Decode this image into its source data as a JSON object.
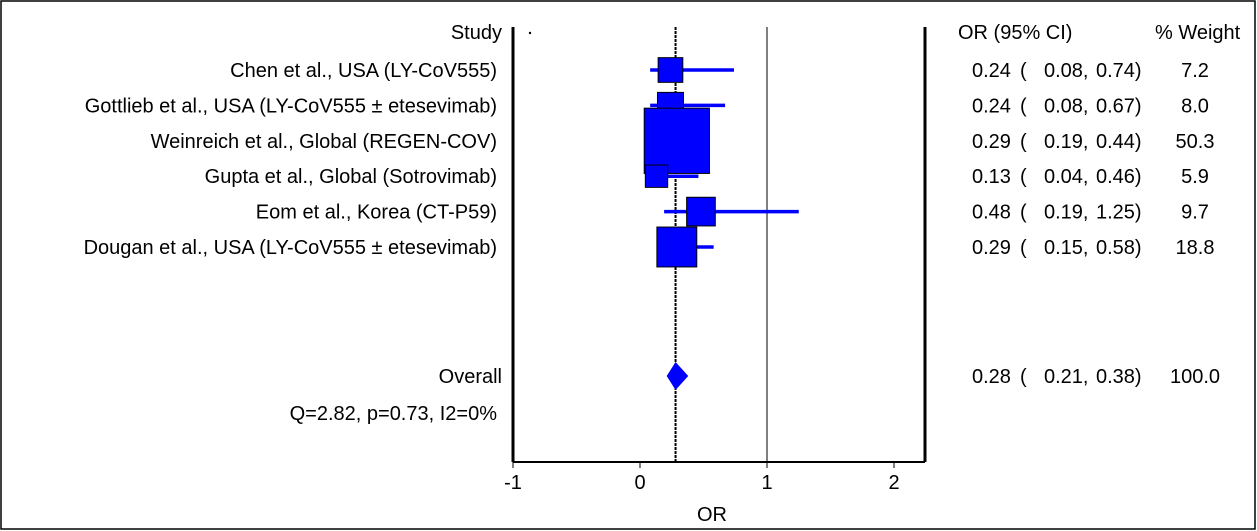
{
  "chart_data": {
    "type": "forest",
    "title": "",
    "xlabel": "OR",
    "x_ticks": [
      -1,
      0,
      1,
      2
    ],
    "xlim": [
      -1,
      2.15
    ],
    "null_line": 1,
    "headers": {
      "study": "Study",
      "or_ci": "OR (95% CI)",
      "weight": "% Weight"
    },
    "studies": [
      {
        "label": "Chen et al., USA (LY-CoV555)",
        "or": 0.24,
        "lo": 0.08,
        "hi": 0.74,
        "or_text": "0.24",
        "lo_text": "0.08",
        "hi_text": "0.74",
        "weight": 7.2,
        "weight_text": "7.2"
      },
      {
        "label": "Gottlieb et al., USA (LY-CoV555 ±  etesevimab)",
        "or": 0.24,
        "lo": 0.08,
        "hi": 0.67,
        "or_text": "0.24",
        "lo_text": "0.08",
        "hi_text": "0.67",
        "weight": 8.0,
        "weight_text": "8.0"
      },
      {
        "label": "Weinreich et al., Global (REGEN-COV)",
        "or": 0.29,
        "lo": 0.19,
        "hi": 0.44,
        "or_text": "0.29",
        "lo_text": "0.19",
        "hi_text": "0.44",
        "weight": 50.3,
        "weight_text": "50.3"
      },
      {
        "label": "Gupta et al., Global (Sotrovimab)",
        "or": 0.13,
        "lo": 0.04,
        "hi": 0.46,
        "or_text": "0.13",
        "lo_text": "0.04",
        "hi_text": "0.46",
        "weight": 5.9,
        "weight_text": "5.9"
      },
      {
        "label": "Eom et al., Korea (CT-P59)",
        "or": 0.48,
        "lo": 0.19,
        "hi": 1.25,
        "or_text": "0.48",
        "lo_text": "0.19",
        "hi_text": "1.25",
        "weight": 9.7,
        "weight_text": "9.7"
      },
      {
        "label": "Dougan et al., USA (LY-CoV555 ±  etesevimab)",
        "or": 0.29,
        "lo": 0.15,
        "hi": 0.58,
        "or_text": "0.29",
        "lo_text": "0.15",
        "hi_text": "0.58",
        "weight": 18.8,
        "weight_text": "18.8"
      }
    ],
    "overall": {
      "label": "Overall",
      "or": 0.28,
      "lo": 0.21,
      "hi": 0.38,
      "or_text": "0.28",
      "lo_text": "0.21",
      "hi_text": "0.38",
      "weight_text": "100.0"
    },
    "heterogeneity": "Q=2.82, p=0.73, I2=0%",
    "colors": {
      "marker": "#0000ff",
      "line": "#000000"
    }
  }
}
